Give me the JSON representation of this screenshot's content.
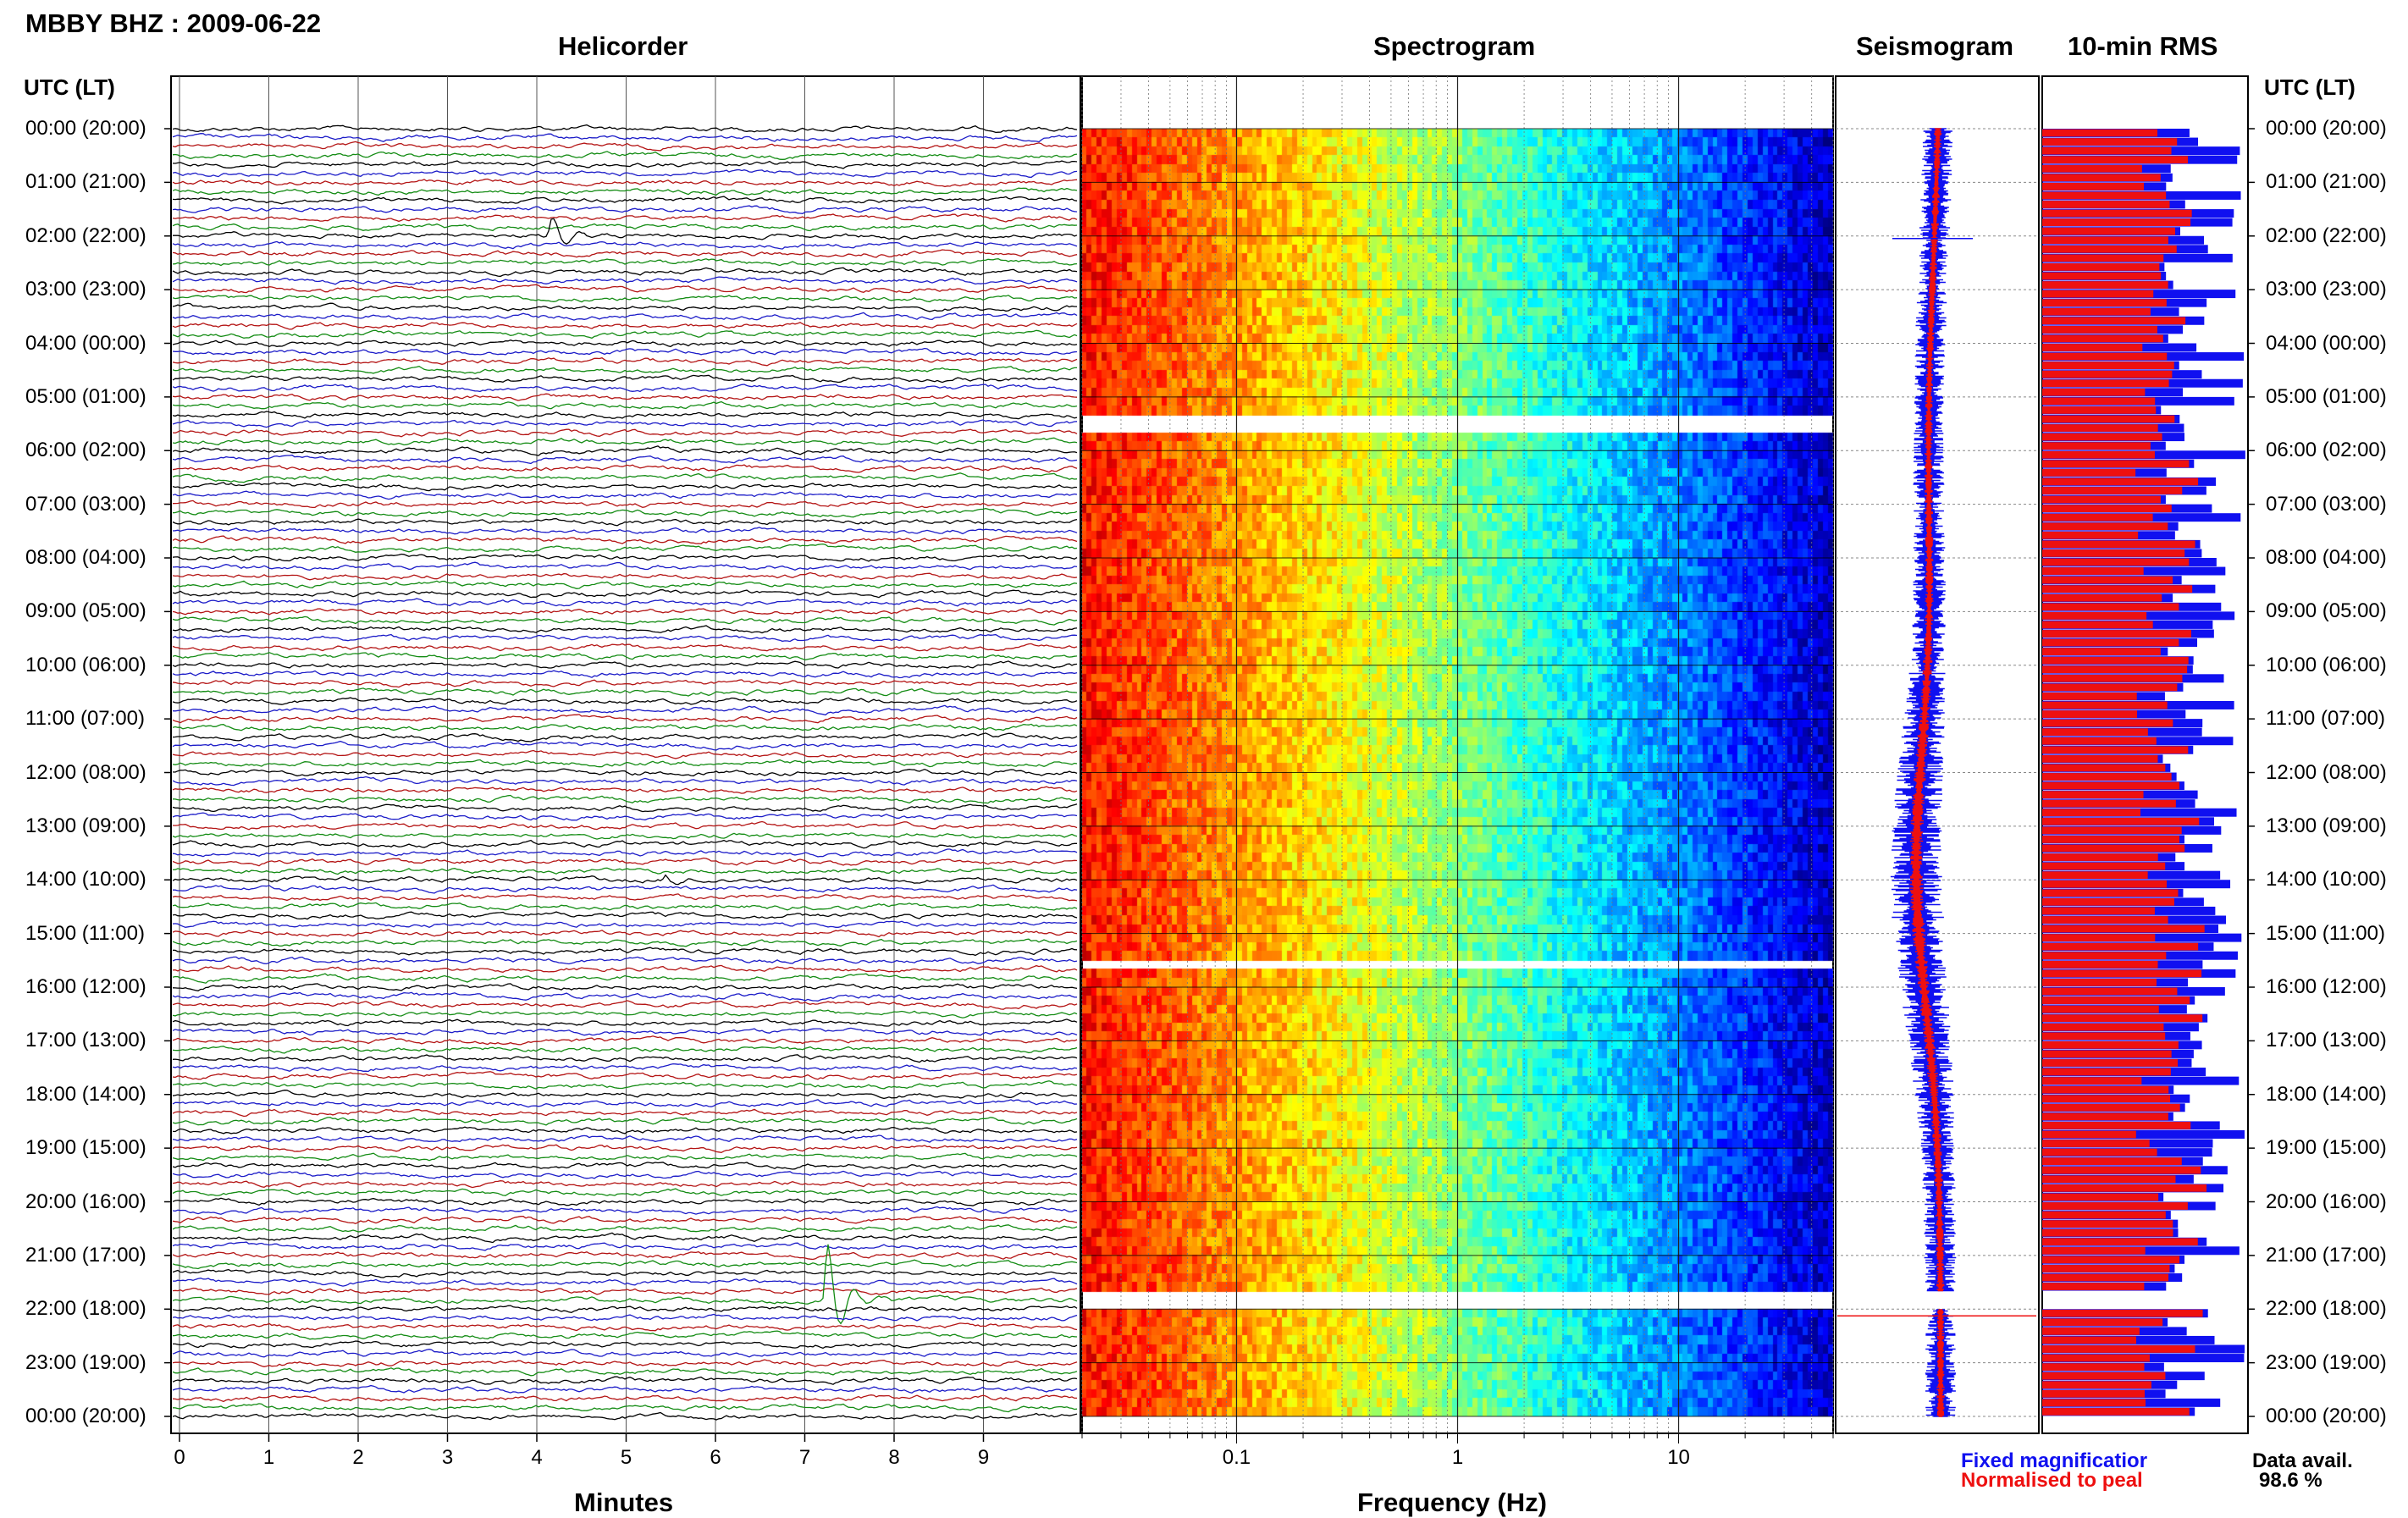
{
  "header": {
    "station_date": "MBBY BHZ : 2009-06-22",
    "time_axis_title_left": "UTC (LT)",
    "time_axis_title_right": "UTC (LT)"
  },
  "panels": {
    "helicorder": "Helicorder",
    "spectrogram": "Spectrogram",
    "seismogram": "Seismogram",
    "rms": "10-min RMS"
  },
  "legend": {
    "fixed": "Fixed magnificatior",
    "normalised": "Normalised to peal",
    "data_avail_label": "Data avail.",
    "data_avail_value": "98.6 %"
  },
  "colors": {
    "trace_cycle": [
      "#000000",
      "#1c1cc8",
      "#b41414",
      "#148c14"
    ],
    "fixed": "#1010f0",
    "normalised": "#ee1010",
    "grid": "#888888",
    "spectro_low": "#ff6a00",
    "spectro_high": "#0010a0"
  },
  "chart_data": [
    {
      "type": "line",
      "title": "Helicorder",
      "xlabel": "Minutes",
      "x_ticks": [
        "0",
        "1",
        "2",
        "3",
        "4",
        "5",
        "6",
        "7",
        "8",
        "9"
      ],
      "xlim": [
        0,
        10
      ],
      "y_ticks": [
        "00:00 (20:00)",
        "01:00 (21:00)",
        "02:00 (22:00)",
        "03:00 (23:00)",
        "04:00 (00:00)",
        "05:00 (01:00)",
        "06:00 (02:00)",
        "07:00 (03:00)",
        "08:00 (04:00)",
        "09:00 (05:00)",
        "10:00 (06:00)",
        "11:00 (07:00)",
        "12:00 (08:00)",
        "13:00 (09:00)",
        "14:00 (10:00)",
        "15:00 (11:00)",
        "16:00 (12:00)",
        "17:00 (13:00)",
        "18:00 (14:00)",
        "19:00 (15:00)",
        "20:00 (16:00)",
        "21:00 (17:00)",
        "22:00 (18:00)",
        "23:00 (19:00)",
        "00:00 (20:00)"
      ],
      "rows_per_hour": 6,
      "events": [
        {
          "utc": "02:00",
          "minute": 4.1,
          "relative_amplitude": 0.35
        },
        {
          "utc": "14:00",
          "minute": 5.4,
          "relative_amplitude": 0.1
        },
        {
          "utc": "21:50",
          "minute": 7.2,
          "relative_amplitude": 1.0
        }
      ]
    },
    {
      "type": "heatmap",
      "title": "Spectrogram",
      "xlabel": "Frequency (Hz)",
      "x_scale": "log",
      "xlim": [
        0.02,
        50
      ],
      "x_ticks": [
        "0.1",
        "1",
        "10"
      ],
      "gaps_utc": [
        "05:20-05:30",
        "15:30",
        "21:40-22:00"
      ]
    },
    {
      "type": "line",
      "title": "Seismogram",
      "series": [
        {
          "name": "Fixed magnificatior",
          "color": "#1010f0"
        },
        {
          "name": "Normalised to peal",
          "color": "#ee1010"
        }
      ]
    },
    {
      "type": "bar",
      "title": "10-min RMS",
      "series": [
        {
          "name": "Fixed magnificatior",
          "color": "#1010f0"
        },
        {
          "name": "Normalised to peal",
          "color": "#ee1010"
        }
      ],
      "orientation": "horizontal",
      "gaps_utc": [
        "21:40-22:00"
      ]
    }
  ]
}
